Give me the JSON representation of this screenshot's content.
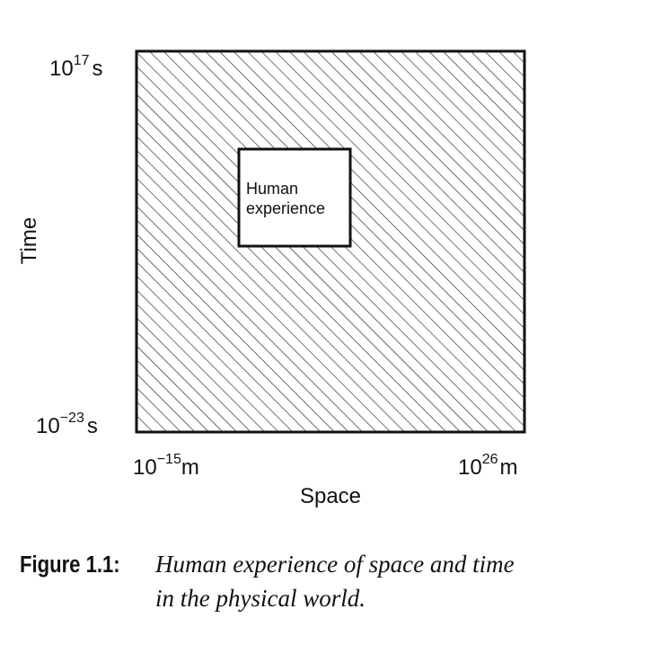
{
  "y_axis": {
    "label": "Time",
    "top": {
      "base": "10",
      "exponent": "17",
      "unit": "s"
    },
    "bottom": {
      "base": "10",
      "exponent": "−23",
      "unit": "s"
    }
  },
  "x_axis": {
    "label": "Space",
    "left": {
      "base": "10",
      "exponent": "−15",
      "unit": "m"
    },
    "right": {
      "base": "10",
      "exponent": "26",
      "unit": "m"
    }
  },
  "box": {
    "label_lines": [
      "Human",
      "experience"
    ]
  },
  "caption": {
    "label": "Figure 1.1:",
    "lines": [
      "Human experience of space and time",
      "in the physical world."
    ]
  }
}
